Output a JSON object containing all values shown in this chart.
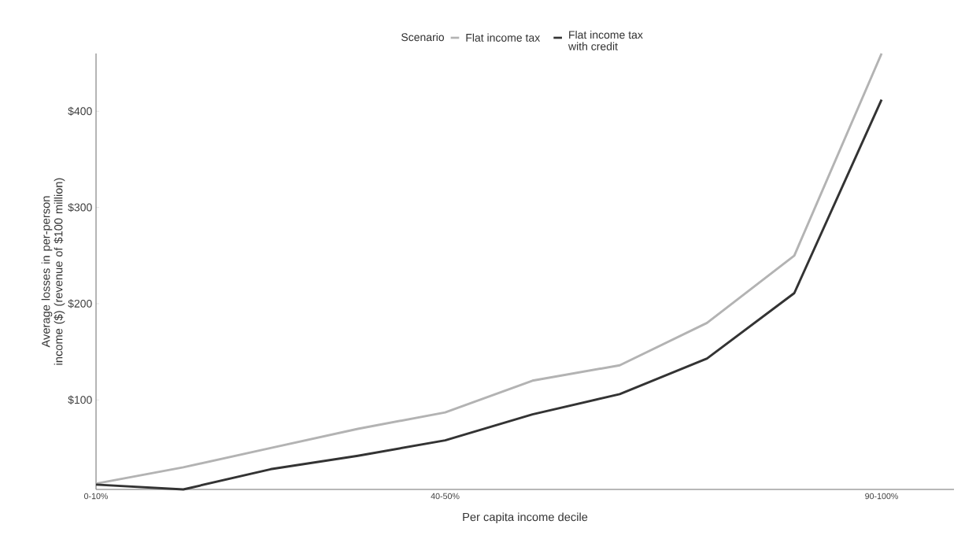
{
  "chart_data": {
    "type": "line",
    "xlabel": "Per capita income decile",
    "ylabel": "Average losses in per-person income ($) (revenue of $100 million)",
    "legend_title": "Scenario",
    "legend": "top",
    "categories": [
      "0-10%",
      null,
      null,
      null,
      "40-50%",
      null,
      null,
      null,
      null,
      "90-100%"
    ],
    "series": [
      {
        "name": "Flat income tax",
        "color": "#b3b3b3",
        "values": [
          13,
          30,
          50,
          70,
          87,
          120,
          136,
          180,
          250,
          460
        ]
      },
      {
        "name": "Flat income tax with credit",
        "color": "#333333",
        "values": [
          12,
          7,
          28,
          42,
          58,
          85,
          106,
          143,
          211,
          412
        ]
      }
    ],
    "ylim": [
      7,
      460
    ],
    "yticks": [
      {
        "value": 100,
        "label": "$100"
      },
      {
        "value": 200,
        "label": "$200"
      },
      {
        "value": 300,
        "label": "$300"
      },
      {
        "value": 400,
        "label": "$400"
      }
    ],
    "grid": false,
    "marker": "none",
    "line_style": "solid"
  }
}
